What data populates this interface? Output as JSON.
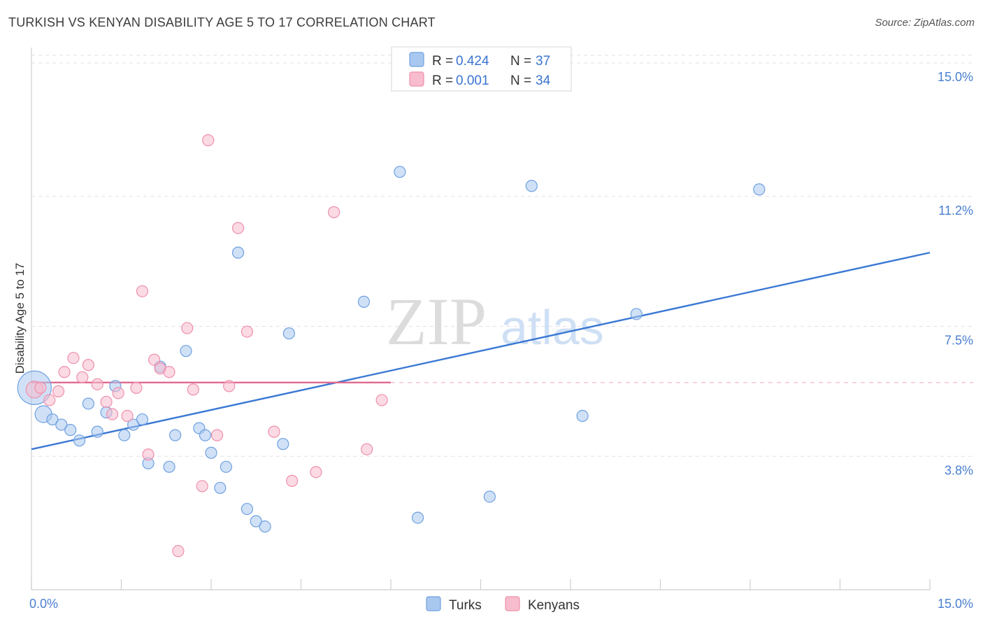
{
  "header": {
    "title": "TURKISH VS KENYAN DISABILITY AGE 5 TO 17 CORRELATION CHART",
    "source": "Source: ZipAtlas.com"
  },
  "watermark": {
    "zip": "ZIP",
    "atlas": "atlas"
  },
  "legend": {
    "rows": [
      {
        "r_label": "R = ",
        "r_value": "0.424",
        "n_label": "N = ",
        "n_value": "37",
        "color": "#a9c8f0"
      },
      {
        "r_label": "R = ",
        "r_value": "0.001",
        "n_label": "N = ",
        "n_value": "34",
        "color": "#f7bccd"
      }
    ],
    "bottom": [
      {
        "label": "Turks",
        "color": "#a9c8f0"
      },
      {
        "label": "Kenyans",
        "color": "#f7bccd"
      }
    ]
  },
  "chart_data": {
    "type": "scatter",
    "title": "TURKISH VS KENYAN DISABILITY AGE 5 TO 17 CORRELATION CHART",
    "xlabel": "",
    "ylabel": "Disability Age 5 to 17",
    "xlim": [
      0,
      15
    ],
    "ylim": [
      0,
      15.3
    ],
    "x_tick_labels": [
      "0.0%",
      "15.0%"
    ],
    "y_ticks": [
      {
        "value": 3.8,
        "label": "3.8%"
      },
      {
        "value": 7.5,
        "label": "7.5%"
      },
      {
        "value": 11.2,
        "label": "11.2%"
      },
      {
        "value": 15.0,
        "label": "15.0%"
      }
    ],
    "grid": true,
    "series": [
      {
        "name": "Turks",
        "color": "#a9c8f0",
        "edge": "#6fa0e0",
        "trend_color": "#3a78d4",
        "trend": [
          [
            0,
            4.0
          ],
          [
            15,
            9.6
          ]
        ],
        "points": [
          [
            0.05,
            5.75,
            3
          ],
          [
            0.2,
            5.0,
            1.5
          ],
          [
            0.35,
            4.85,
            1
          ],
          [
            0.5,
            4.7,
            1
          ],
          [
            0.65,
            4.55,
            1
          ],
          [
            0.8,
            4.25,
            1
          ],
          [
            0.95,
            5.3,
            1
          ],
          [
            1.1,
            4.5,
            1
          ],
          [
            1.25,
            5.05,
            1
          ],
          [
            1.4,
            5.8,
            1
          ],
          [
            1.55,
            4.4,
            1
          ],
          [
            1.7,
            4.7,
            1
          ],
          [
            1.85,
            4.85,
            1
          ],
          [
            1.95,
            3.6,
            1
          ],
          [
            2.15,
            6.35,
            1
          ],
          [
            2.3,
            3.5,
            1
          ],
          [
            2.4,
            4.4,
            1
          ],
          [
            2.58,
            6.8,
            1
          ],
          [
            2.8,
            4.6,
            1
          ],
          [
            2.9,
            4.4,
            1
          ],
          [
            3.0,
            3.9,
            1
          ],
          [
            3.15,
            2.9,
            1
          ],
          [
            3.25,
            3.5,
            1
          ],
          [
            3.45,
            9.6,
            1
          ],
          [
            3.6,
            2.3,
            1
          ],
          [
            3.75,
            1.95,
            1
          ],
          [
            3.9,
            1.8,
            1
          ],
          [
            4.2,
            4.15,
            1
          ],
          [
            4.3,
            7.3,
            1
          ],
          [
            5.55,
            8.2,
            1
          ],
          [
            6.15,
            11.9,
            1
          ],
          [
            6.45,
            2.05,
            1
          ],
          [
            7.65,
            2.65,
            1
          ],
          [
            8.35,
            11.5,
            1
          ],
          [
            9.2,
            4.95,
            1
          ],
          [
            10.1,
            7.85,
            1
          ],
          [
            12.15,
            11.4,
            1
          ]
        ]
      },
      {
        "name": "Kenyans",
        "color": "#f7bccd",
        "edge": "#ee8fab",
        "trend_color": "#e06a90",
        "trend": [
          [
            0,
            5.9
          ],
          [
            6,
            5.9
          ]
        ],
        "dashed_extension": [
          [
            6,
            5.9
          ],
          [
            15,
            5.9
          ]
        ],
        "points": [
          [
            0.05,
            5.7,
            1.5
          ],
          [
            0.15,
            5.75,
            1
          ],
          [
            0.3,
            5.4,
            1
          ],
          [
            0.45,
            5.65,
            1
          ],
          [
            0.55,
            6.2,
            1
          ],
          [
            0.7,
            6.6,
            1
          ],
          [
            0.85,
            6.05,
            1
          ],
          [
            0.95,
            6.4,
            1
          ],
          [
            1.1,
            5.85,
            1
          ],
          [
            1.25,
            5.35,
            1
          ],
          [
            1.35,
            5.0,
            1
          ],
          [
            1.45,
            5.6,
            1
          ],
          [
            1.6,
            4.95,
            1
          ],
          [
            1.75,
            5.75,
            1
          ],
          [
            1.85,
            8.5,
            1
          ],
          [
            1.95,
            3.85,
            1
          ],
          [
            2.05,
            6.55,
            1
          ],
          [
            2.15,
            6.3,
            1
          ],
          [
            2.3,
            6.2,
            1
          ],
          [
            2.45,
            1.1,
            1
          ],
          [
            2.6,
            7.45,
            1
          ],
          [
            2.7,
            5.7,
            1
          ],
          [
            2.85,
            2.95,
            1
          ],
          [
            2.95,
            12.8,
            1
          ],
          [
            3.1,
            4.4,
            1
          ],
          [
            3.3,
            5.8,
            1
          ],
          [
            3.45,
            10.3,
            1
          ],
          [
            3.6,
            7.35,
            1
          ],
          [
            4.05,
            4.5,
            1
          ],
          [
            4.35,
            3.1,
            1
          ],
          [
            4.75,
            3.35,
            1
          ],
          [
            5.05,
            10.75,
            1
          ],
          [
            5.6,
            4.0,
            1
          ],
          [
            5.85,
            5.4,
            1
          ]
        ]
      }
    ]
  }
}
